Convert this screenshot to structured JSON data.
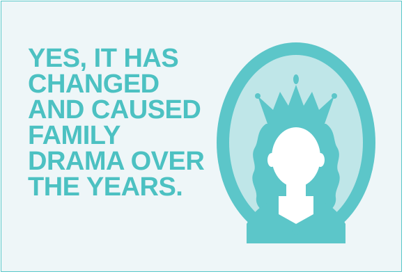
{
  "headline": {
    "lines": [
      "YES, IT HAS",
      "CHANGED",
      "AND CAUSED",
      "FAMILY",
      "DRAMA OVER",
      "THE YEARS."
    ]
  },
  "colors": {
    "background": "#eef6f8",
    "accent": "#4cc1c2",
    "oval_fill": "#5cc6c9",
    "oval_inner": "#bfe6e8",
    "face": "#ffffff"
  },
  "icons": {
    "portrait": "queen-silhouette-icon"
  }
}
